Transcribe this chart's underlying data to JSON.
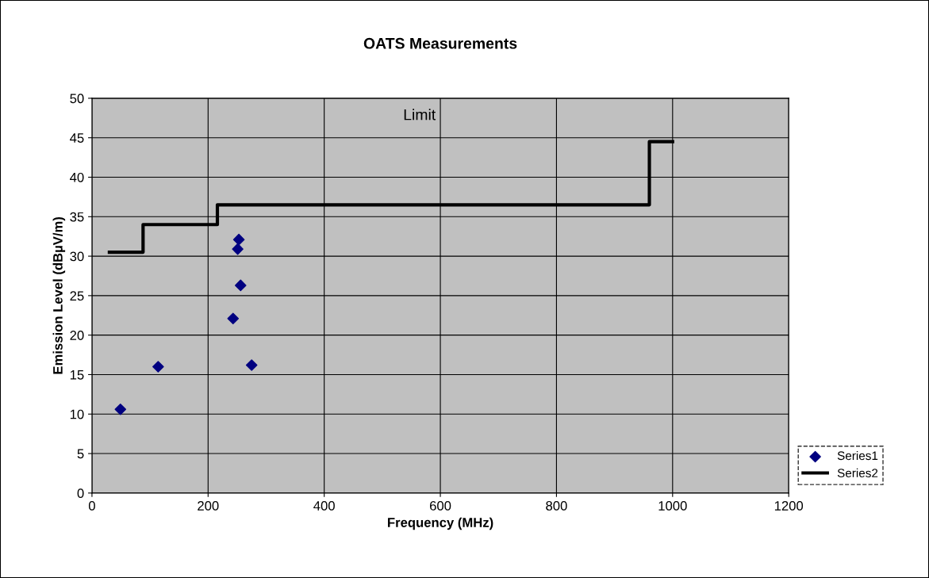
{
  "chart_data": {
    "type": "scatter",
    "title": "OATS Measurements",
    "xlabel": "Frequency (MHz)",
    "ylabel": "Emission Level (dBµV/m)",
    "annotations": [
      "Limit"
    ],
    "series": [
      {
        "name": "Series1",
        "color": "#000080",
        "marker": "diamond",
        "x": [
          49,
          114,
          253,
          251,
          256,
          243,
          275
        ],
        "values": [
          10.6,
          16.0,
          32.1,
          30.9,
          26.3,
          22.1,
          16.2
        ]
      },
      {
        "name": "Series2",
        "type": "step",
        "color": "#000000",
        "marker": "none",
        "x": [
          30,
          88,
          216,
          960,
          1000
        ],
        "values": [
          30.5,
          34,
          36.5,
          44.5,
          44.5
        ]
      }
    ],
    "xlim": [
      0,
      1200
    ],
    "xticks": [
      0,
      200,
      400,
      600,
      800,
      1000,
      1200
    ],
    "ylim": [
      0,
      50
    ],
    "yticks": [
      0,
      5,
      10,
      15,
      20,
      25,
      30,
      35,
      40,
      45,
      50
    ],
    "grid": true,
    "legend": "right"
  }
}
